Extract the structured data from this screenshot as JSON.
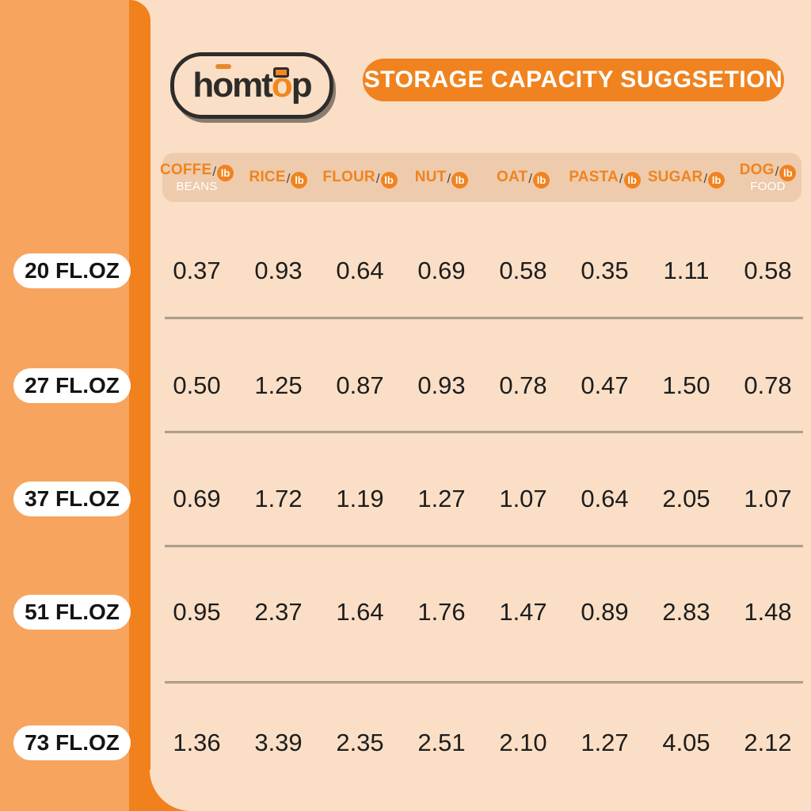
{
  "brand": {
    "seg1": "h",
    "seg_o1": "o",
    "seg2": "mt",
    "seg_o2": "o",
    "seg3": "p"
  },
  "banner": {
    "title": "STORAGE CAPACITY SUGGSETION"
  },
  "table": {
    "unit": "lb",
    "slash": "/",
    "columns": [
      {
        "label": "COFFE",
        "sublabel": "BEANS"
      },
      {
        "label": "RICE"
      },
      {
        "label": "FLOUR"
      },
      {
        "label": "NUT"
      },
      {
        "label": "OAT"
      },
      {
        "label": "PASTA"
      },
      {
        "label": "SUGAR"
      },
      {
        "label": "DOG",
        "sublabel": "FOOD"
      }
    ],
    "rows": [
      {
        "size": "20 FL.OZ",
        "values": [
          "0.37",
          "0.93",
          "0.64",
          "0.69",
          "0.58",
          "0.35",
          "1.11",
          "0.58"
        ]
      },
      {
        "size": "27 FL.OZ",
        "values": [
          "0.50",
          "1.25",
          "0.87",
          "0.93",
          "0.78",
          "0.47",
          "1.50",
          "0.78"
        ]
      },
      {
        "size": "37 FL.OZ",
        "values": [
          "0.69",
          "1.72",
          "1.19",
          "1.27",
          "1.07",
          "0.64",
          "2.05",
          "1.07"
        ]
      },
      {
        "size": "51 FL.OZ",
        "values": [
          "0.95",
          "2.37",
          "1.64",
          "1.76",
          "1.47",
          "0.89",
          "2.83",
          "1.48"
        ]
      },
      {
        "size": "73 FL.OZ",
        "values": [
          "1.36",
          "3.39",
          "2.35",
          "2.51",
          "2.10",
          "1.27",
          "4.05",
          "2.12"
        ]
      }
    ]
  },
  "chart_data": {
    "type": "table",
    "title": "STORAGE CAPACITY SUGGSETION",
    "unit_per_cell": "lb",
    "columns": [
      "COFFE BEANS",
      "RICE",
      "FLOUR",
      "NUT",
      "OAT",
      "PASTA",
      "SUGAR",
      "DOG FOOD"
    ],
    "row_labels": [
      "20 FL.OZ",
      "27 FL.OZ",
      "37 FL.OZ",
      "51 FL.OZ",
      "73 FL.OZ"
    ],
    "values": [
      [
        0.37,
        0.93,
        0.64,
        0.69,
        0.58,
        0.35,
        1.11,
        0.58
      ],
      [
        0.5,
        1.25,
        0.87,
        0.93,
        0.78,
        0.47,
        1.5,
        0.78
      ],
      [
        0.69,
        1.72,
        1.19,
        1.27,
        1.07,
        0.64,
        2.05,
        1.07
      ],
      [
        0.95,
        2.37,
        1.64,
        1.76,
        1.47,
        0.89,
        2.83,
        1.48
      ],
      [
        1.36,
        3.39,
        2.35,
        2.51,
        2.1,
        1.27,
        4.05,
        2.12
      ]
    ]
  },
  "colors": {
    "sidebar_light_orange": "#F7A45F",
    "ribbon_dark_orange": "#F0811C",
    "panel_cream": "#FADFC6",
    "header_strip_tan": "#EECBAC",
    "accent_orange": "#F0831F",
    "value_text": "#1D1D1D",
    "badge_text": "#FFFFFF"
  }
}
